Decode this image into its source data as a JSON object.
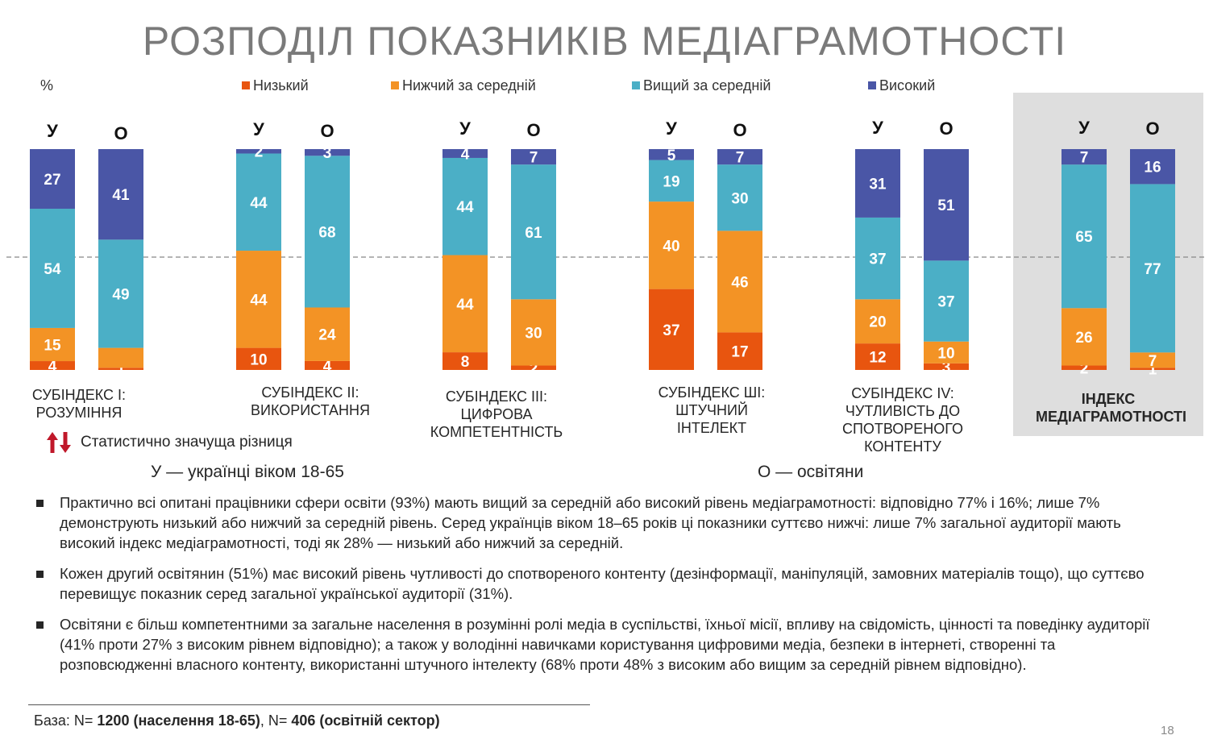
{
  "title": "РОЗПОДІЛ ПОКАЗНИКІВ МЕДІАГРАМОТНОСТІ",
  "unit_label": "%",
  "legend": [
    {
      "label": "Низький",
      "color": "#e8550f"
    },
    {
      "label": "Нижчий за середній",
      "color": "#f39325"
    },
    {
      "label": "Вищий за середній",
      "color": "#4bafc6"
    },
    {
      "label": "Високий",
      "color": "#4a56a6"
    }
  ],
  "chart_data": {
    "type": "bar",
    "stacked": true,
    "ylim": [
      0,
      100
    ],
    "series_names": [
      "Низький",
      "Нижчий за середній",
      "Вищий за середній",
      "Високий"
    ],
    "series_colors": [
      "#e8550f",
      "#f39325",
      "#4bafc6",
      "#4a56a6"
    ],
    "groups": [
      {
        "label_lines": [
          "СУБІНДЕКС І:",
          "РОЗУМІННЯ"
        ],
        "bars": [
          {
            "code": "У",
            "values": [
              4,
              15,
              54,
              27
            ]
          },
          {
            "code": "О",
            "values": [
              1,
              9,
              49,
              41
            ],
            "labels": [
              "1",
              "",
              "49",
              "41"
            ]
          }
        ]
      },
      {
        "label_lines": [
          "СУБІНДЕКС ІІ:",
          "ВИКОРИСТАННЯ"
        ],
        "bars": [
          {
            "code": "У",
            "values": [
              10,
              44,
              44,
              2
            ]
          },
          {
            "code": "О",
            "values": [
              4,
              24,
              68,
              3
            ]
          }
        ]
      },
      {
        "label_lines": [
          "СУБІНДЕКС ІІІ:",
          "ЦИФРОВА",
          "КОМПЕТЕНТНІСТЬ"
        ],
        "bars": [
          {
            "code": "У",
            "values": [
              8,
              44,
              44,
              4
            ]
          },
          {
            "code": "О",
            "values": [
              2,
              30,
              61,
              7
            ]
          }
        ]
      },
      {
        "label_lines": [
          "СУБІНДЕКС ШІ:",
          "ШТУЧНИЙ ІНТЕЛЕКТ"
        ],
        "bars": [
          {
            "code": "У",
            "values": [
              37,
              40,
              19,
              5
            ]
          },
          {
            "code": "О",
            "values": [
              17,
              46,
              30,
              7
            ]
          }
        ]
      },
      {
        "label_lines": [
          "СУБІНДЕКС IV:",
          "ЧУТЛИВІСТЬ ДО",
          "СПОТВОРЕНОГО",
          "КОНТЕНТУ"
        ],
        "bars": [
          {
            "code": "У",
            "values": [
              12,
              20,
              37,
              31
            ]
          },
          {
            "code": "О",
            "values": [
              3,
              10,
              37,
              51
            ]
          }
        ]
      },
      {
        "label_lines": [
          "ІНДЕКС",
          "МЕДІАГРАМОТНОСТІ"
        ],
        "highlight": true,
        "bars": [
          {
            "code": "У",
            "values": [
              2,
              26,
              65,
              7
            ]
          },
          {
            "code": "О",
            "values": [
              1,
              7,
              77,
              16
            ]
          }
        ]
      }
    ]
  },
  "stat_note": "Статистично значуща різниця",
  "definitions": {
    "u": "У — українці віком 18-65",
    "o": "О — освітяни"
  },
  "bullets": [
    "Практично всі опитані працівники сфери освіти (93%) мають вищий за середній або високий рівень медіаграмотності: відповідно 77% і 16%; лише 7% демонструють низький або нижчий за середній рівень. Серед українців віком 18–65 років ці показники суттєво нижчі: лише 7% загальної аудиторії мають високий індекс медіаграмотності, тоді як 28% — низький або нижчий за середній.",
    "Кожен другий освітянин (51%) має високий рівень чутливості до спотвореного контенту (дезінформації, маніпуляцій, замовних матеріалів тощо), що суттєво перевищує показник серед загальної української аудиторії (31%).",
    "Освітяни є більш компетентними за загальне населення в розумінні ролі медіа в суспільстві, їхньої місії, впливу на свідомість, цінності та поведінку аудиторії (41% проти 27% з високим рівнем відповідно); а також у володінні навичками користування цифровими медіа, безпеки в інтернеті, створенні та розповсюдженні власного контенту, використанні штучного інтелекту (68% проти 48% з високим або вищим за середній рівнем відповідно)."
  ],
  "base": {
    "prefix": "База: N= ",
    "n1": "1200 (населення 18-65)",
    "sep": ", N= ",
    "n2": "406 (освітній сектор)"
  },
  "page_number": "18"
}
